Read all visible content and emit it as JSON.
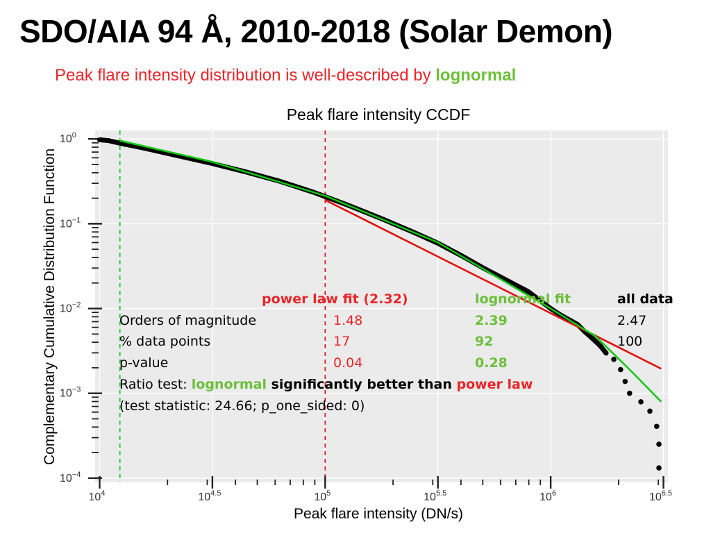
{
  "slide": {
    "title": "SDO/AIA 94 Å, 2010-2018 (Solar Demon)",
    "subtitle_main": "Peak flare intensity distribution is well-described by ",
    "subtitle_accent": "lognormal"
  },
  "colors": {
    "red": "#e8262a",
    "green": "#6cbf3c",
    "fit_green": "#12c612",
    "fit_red": "#e01010",
    "panel": "#ebebeb"
  },
  "chart_data": {
    "type": "scatter",
    "title": "Peak flare intensity CCDF",
    "xlabel": "Peak flare intensity (DN/s)",
    "ylabel": "Complementary Cumulative Distribution Function",
    "xscale": "log10",
    "yscale": "log10",
    "xlim_log10": [
      3.98,
      6.52
    ],
    "ylim_log10": [
      -4.05,
      0.1
    ],
    "xticks": [
      {
        "log": 4.0,
        "base": "10",
        "exp": "4"
      },
      {
        "log": 4.5,
        "base": "10",
        "exp": "4.5"
      },
      {
        "log": 5.0,
        "base": "10",
        "exp": "5"
      },
      {
        "log": 5.5,
        "base": "10",
        "exp": "5.5"
      },
      {
        "log": 6.0,
        "base": "10",
        "exp": "6"
      },
      {
        "log": 6.5,
        "base": "10",
        "exp": "6.5"
      }
    ],
    "yticks": [
      {
        "log": 0,
        "base": "10",
        "exp": "0"
      },
      {
        "log": -1,
        "base": "10",
        "exp": "−1"
      },
      {
        "log": -2,
        "base": "10",
        "exp": "−2"
      },
      {
        "log": -3,
        "base": "10",
        "exp": "−3"
      },
      {
        "log": -4,
        "base": "10",
        "exp": "−4"
      }
    ],
    "vlines": [
      {
        "name": "lognormal-xmin-line",
        "x_log10": 4.09,
        "color": "#12c612"
      },
      {
        "name": "powerlaw-xmin-line",
        "x_log10": 5.0,
        "color": "#e01010"
      }
    ],
    "series": [
      {
        "name": "data",
        "color": "#000000",
        "points_log10": [
          [
            4.0,
            -0.01
          ],
          [
            4.04,
            -0.02
          ],
          [
            4.09,
            -0.05
          ],
          [
            4.2,
            -0.11
          ],
          [
            4.35,
            -0.2
          ],
          [
            4.5,
            -0.29
          ],
          [
            4.65,
            -0.39
          ],
          [
            4.8,
            -0.5
          ],
          [
            4.95,
            -0.63
          ],
          [
            5.1,
            -0.78
          ],
          [
            5.25,
            -0.94
          ],
          [
            5.4,
            -1.11
          ],
          [
            5.5,
            -1.23
          ],
          [
            5.6,
            -1.37
          ],
          [
            5.7,
            -1.52
          ],
          [
            5.8,
            -1.66
          ],
          [
            5.9,
            -1.8
          ],
          [
            6.0,
            -2.0
          ],
          [
            6.04,
            -2.07
          ],
          [
            6.08,
            -2.13
          ],
          [
            6.12,
            -2.19
          ],
          [
            6.15,
            -2.27
          ],
          [
            6.18,
            -2.34
          ],
          [
            6.22,
            -2.44
          ],
          [
            6.25,
            -2.54
          ],
          [
            6.28,
            -2.6
          ],
          [
            6.31,
            -2.72
          ],
          [
            6.33,
            -2.86
          ],
          [
            6.35,
            -3.0
          ],
          [
            6.4,
            -3.1
          ],
          [
            6.44,
            -3.21
          ],
          [
            6.47,
            -3.39
          ],
          [
            6.48,
            -3.6
          ],
          [
            6.48,
            -3.88
          ]
        ]
      },
      {
        "name": "lognormal fit",
        "color": "#12c612",
        "points_log10": [
          [
            4.09,
            -0.02
          ],
          [
            4.5,
            -0.27
          ],
          [
            5.0,
            -0.67
          ],
          [
            5.5,
            -1.22
          ],
          [
            6.0,
            -2.0
          ],
          [
            6.2,
            -2.33
          ],
          [
            6.35,
            -2.72
          ],
          [
            6.49,
            -3.1
          ]
        ]
      },
      {
        "name": "power law fit (2.32)",
        "color": "#e01010",
        "points_log10": [
          [
            5.0,
            -0.72
          ],
          [
            6.49,
            -2.71
          ]
        ]
      }
    ],
    "table": {
      "headers": [
        "",
        "power law fit (2.32)",
        "lognormal fit",
        "all data"
      ],
      "rows": [
        {
          "label": "Orders of magnitude",
          "power": "1.48",
          "lognormal": "2.39",
          "all": "2.47"
        },
        {
          "label": "% data points",
          "power": "17",
          "lognormal": "92",
          "all": "100"
        },
        {
          "label": "p-value",
          "power": "0.04",
          "lognormal": "0.28",
          "all": ""
        }
      ],
      "ratio_prefix": "Ratio test: ",
      "ratio_lognormal": "lognormal",
      "ratio_middle": " significantly better than ",
      "ratio_powerlaw": "power law",
      "test_statistic": "(test statistic: 24.66; p_one_sided: 0)"
    }
  }
}
